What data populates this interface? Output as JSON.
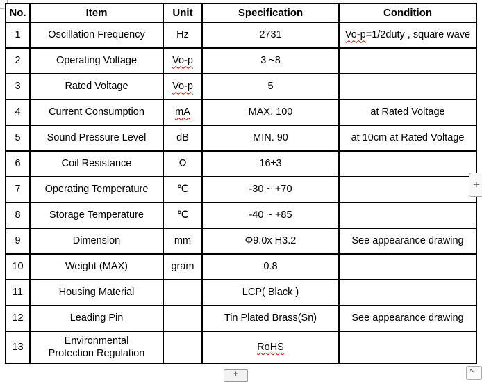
{
  "spellcheck_color": "#d40000",
  "table": {
    "headers": [
      "No.",
      "Item",
      "Unit",
      "Specification",
      "Condition"
    ],
    "rows": [
      {
        "no": "1",
        "item": [
          "Oscillation Frequency"
        ],
        "unit": [
          {
            "t": "Hz"
          }
        ],
        "spec": [
          {
            "t": "2731"
          }
        ],
        "cond": [
          {
            "t": "Vo-p",
            "sp": true
          },
          {
            "t": "=1/2duty , square wave"
          }
        ]
      },
      {
        "no": "2",
        "item": [
          "Operating Voltage"
        ],
        "unit": [
          {
            "t": "Vo-p",
            "sp": true
          }
        ],
        "spec": [
          {
            "t": "3 ~8"
          }
        ],
        "cond": []
      },
      {
        "no": "3",
        "item": [
          "Rated Voltage"
        ],
        "unit": [
          {
            "t": "Vo-p",
            "sp": true
          }
        ],
        "spec": [
          {
            "t": "5"
          }
        ],
        "cond": []
      },
      {
        "no": "4",
        "item": [
          "Current Consumption"
        ],
        "unit": [
          {
            "t": "mA",
            "sp": true
          }
        ],
        "spec": [
          {
            "t": "MAX. 100"
          }
        ],
        "cond": [
          {
            "t": "at Rated Voltage"
          }
        ]
      },
      {
        "no": "5",
        "item": [
          "Sound Pressure Level"
        ],
        "unit": [
          {
            "t": "dB"
          }
        ],
        "spec": [
          {
            "t": "MIN. 90"
          }
        ],
        "cond": [
          {
            "t": "at 10cm at Rated Voltage"
          }
        ]
      },
      {
        "no": "6",
        "item": [
          "Coil Resistance"
        ],
        "unit": [
          {
            "t": "Ω"
          }
        ],
        "spec": [
          {
            "t": "16±3"
          }
        ],
        "cond": []
      },
      {
        "no": "7",
        "item": [
          "Operating Temperature"
        ],
        "unit": [
          {
            "t": "℃"
          }
        ],
        "spec": [
          {
            "t": "-30 ~ +70"
          }
        ],
        "cond": []
      },
      {
        "no": "8",
        "item": [
          "Storage Temperature"
        ],
        "unit": [
          {
            "t": "℃"
          }
        ],
        "spec": [
          {
            "t": "-40 ~ +85"
          }
        ],
        "cond": []
      },
      {
        "no": "9",
        "item": [
          "Dimension"
        ],
        "unit": [
          {
            "t": "mm"
          }
        ],
        "spec": [
          {
            "t": "Φ9.0x H3.2"
          }
        ],
        "cond": [
          {
            "t": "See appearance drawing"
          }
        ]
      },
      {
        "no": "10",
        "item": [
          "Weight (MAX)"
        ],
        "unit": [
          {
            "t": "gram"
          }
        ],
        "spec": [
          {
            "t": "0.8"
          }
        ],
        "cond": []
      },
      {
        "no": "11",
        "item": [
          "Housing Material"
        ],
        "unit": [],
        "spec": [
          {
            "t": "LCP( Black )"
          }
        ],
        "cond": []
      },
      {
        "no": "12",
        "item": [
          "Leading Pin"
        ],
        "unit": [],
        "spec": [
          {
            "t": "Tin Plated Brass(Sn)"
          }
        ],
        "cond": [
          {
            "t": "See appearance drawing"
          }
        ]
      },
      {
        "no": "13",
        "item": [
          "Environmental",
          "Protection Regulation"
        ],
        "unit": [],
        "spec": [
          {
            "t": "RoHS",
            "sp": true
          }
        ],
        "cond": []
      }
    ]
  },
  "controls": {
    "side_plus_button": {
      "glyph": "+"
    },
    "bottom_plus_button": {
      "glyph": "+"
    },
    "corner_nav_button": {
      "glyph": "↖"
    }
  }
}
